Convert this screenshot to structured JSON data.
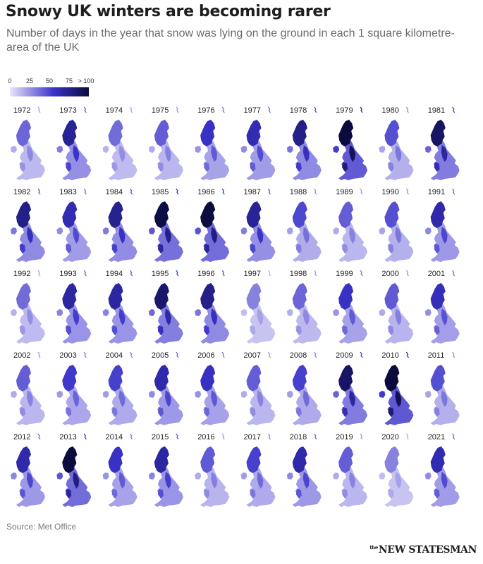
{
  "header": {
    "title": "Snowy UK winters are becoming rarer",
    "subtitle": "Number of days in the year that snow was lying on the ground in each 1 square kilometre-area of the UK"
  },
  "legend": {
    "ticks": [
      "0",
      "25",
      "50",
      "75",
      "> 100"
    ],
    "color_low": "#e7e4fb",
    "color_mid": "#3a33c9",
    "color_high": "#0b0b3d"
  },
  "footer": {
    "source": "Source: Met Office",
    "brand_the": "the",
    "brand_name": "NEW STATESMAN"
  },
  "chart_data": {
    "type": "heatmap",
    "title": "Snowy UK winters are becoming rarer",
    "subtitle": "Number of days in the year that snow was lying on the ground in each 1 square kilometre-area of the UK",
    "scale": {
      "min": 0,
      "max": 100,
      "ticks": [
        0,
        25,
        50,
        75,
        100
      ]
    },
    "years": [
      1972,
      1973,
      1974,
      1975,
      1976,
      1977,
      1978,
      1979,
      1980,
      1981,
      1982,
      1983,
      1984,
      1985,
      1986,
      1987,
      1988,
      1989,
      1990,
      1991,
      1992,
      1993,
      1994,
      1995,
      1996,
      1997,
      1998,
      1999,
      2000,
      2001,
      2002,
      2003,
      2004,
      2005,
      2006,
      2007,
      2008,
      2009,
      2010,
      2011,
      2012,
      2013,
      2014,
      2015,
      2016,
      2017,
      2018,
      2019,
      2020,
      2021
    ],
    "relative_snow_intensity": [
      0.3,
      0.58,
      0.28,
      0.32,
      0.45,
      0.5,
      0.62,
      0.95,
      0.36,
      0.72,
      0.62,
      0.5,
      0.6,
      0.8,
      0.82,
      0.58,
      0.38,
      0.32,
      0.36,
      0.52,
      0.28,
      0.55,
      0.55,
      0.7,
      0.62,
      0.22,
      0.3,
      0.45,
      0.33,
      0.48,
      0.32,
      0.42,
      0.4,
      0.52,
      0.46,
      0.32,
      0.4,
      0.72,
      0.97,
      0.36,
      0.52,
      0.82,
      0.45,
      0.55,
      0.33,
      0.4,
      0.52,
      0.32,
      0.22,
      0.5
    ]
  }
}
